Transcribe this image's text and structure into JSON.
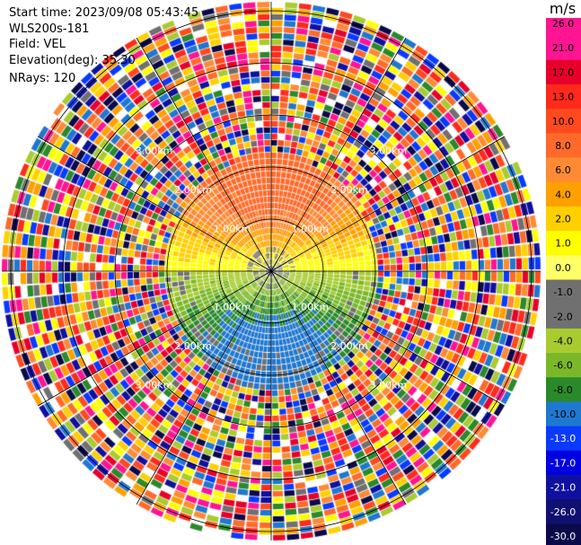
{
  "header": {
    "start_time": "Start time: 2023/09/08 05:43:45",
    "station": "WLS200s-181",
    "field": "Field: VEL",
    "elevation": "Elevation(deg): 35.30",
    "nrays": "NRays: 120"
  },
  "chart_data": {
    "type": "heatmap",
    "projection": "polar-ppi",
    "field": "VEL",
    "unit": "m/s",
    "range_ring_labels": [
      "1.00km",
      "2.00km",
      "3.00km"
    ],
    "range_rings_km": [
      1,
      2,
      3,
      4,
      5
    ],
    "spoke_step_deg": 30,
    "colorbar": {
      "ticks": [
        "26.0",
        "21.0",
        "17.0",
        "13.0",
        "10.0",
        "8.0",
        "6.0",
        "4.0",
        "2.0",
        "1.0",
        "0.0",
        "-1.0",
        "-2.0",
        "-4.0",
        "-6.0",
        "-8.0",
        "-10.0",
        "-13.0",
        "-17.0",
        "-21.0",
        "-26.0",
        "-30.0"
      ],
      "colors": [
        "#ff1493",
        "#ff1493",
        "#e8002a",
        "#ff2a1c",
        "#ff4a1e",
        "#ff6a2a",
        "#ff8a34",
        "#ffa000",
        "#ffd000",
        "#ffff00",
        "#ffff66",
        "#707070",
        "#707070",
        "#a8cc30",
        "#7ab82a",
        "#2a8a2a",
        "#1f78d0",
        "#0a3aff",
        "#0000e0",
        "#1010a0",
        "#101070",
        "#0a0a4a"
      ]
    },
    "regions": [
      {
        "range_km": [
          0.0,
          0.35
        ],
        "azimuth_deg": [
          0,
          360
        ],
        "value": "0.0 (noisy)"
      },
      {
        "range_km": [
          0.35,
          1.9
        ],
        "azimuth_deg": [
          275,
          85
        ],
        "value": "2.0 to 8.0"
      },
      {
        "range_km": [
          0.35,
          2.1
        ],
        "azimuth_deg": [
          95,
          265
        ],
        "value": "-2.0 to -8.0"
      },
      {
        "range_km": [
          0.6,
          1.2
        ],
        "azimuth_deg": [
          150,
          210
        ],
        "value": "-8.0 to -10.0"
      },
      {
        "range_km": [
          2.5,
          3.6
        ],
        "azimuth_deg": [
          0,
          360
        ],
        "value": "noise"
      }
    ]
  }
}
